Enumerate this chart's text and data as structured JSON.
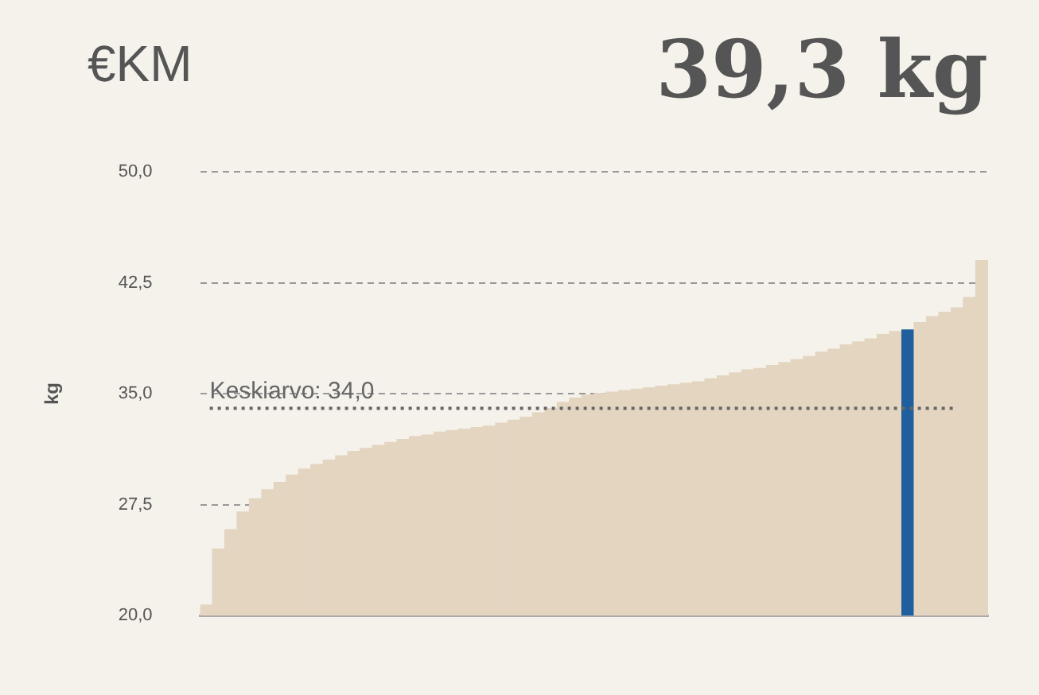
{
  "chart_data": {
    "type": "bar",
    "title": "€KM",
    "subtitle": "39,3 kg",
    "ylabel": "kg",
    "categories": [
      null,
      null,
      null,
      null,
      null,
      null,
      null,
      null,
      null,
      null,
      null,
      null,
      null,
      null,
      null,
      null,
      null,
      null,
      null,
      null,
      null,
      null,
      null,
      null,
      null,
      null,
      null,
      null,
      null,
      null,
      null,
      null,
      null,
      null,
      null,
      null,
      null,
      null,
      null,
      null,
      null,
      null,
      null,
      null,
      null,
      null,
      null,
      null,
      null,
      null,
      null,
      null,
      null,
      null,
      null,
      null,
      null,
      null,
      null,
      null,
      null,
      null,
      null,
      null
    ],
    "values": [
      20.7,
      24.5,
      25.8,
      27.0,
      27.9,
      28.5,
      29.0,
      29.5,
      29.9,
      30.2,
      30.5,
      30.8,
      31.1,
      31.3,
      31.5,
      31.7,
      31.9,
      32.1,
      32.2,
      32.4,
      32.5,
      32.6,
      32.7,
      32.8,
      33.0,
      33.2,
      33.4,
      33.7,
      34.0,
      34.4,
      34.7,
      34.9,
      35.0,
      35.1,
      35.2,
      35.3,
      35.4,
      35.5,
      35.6,
      35.7,
      35.8,
      36.0,
      36.2,
      36.4,
      36.6,
      36.7,
      36.9,
      37.1,
      37.3,
      37.5,
      37.8,
      38.0,
      38.3,
      38.5,
      38.7,
      39.0,
      39.2,
      39.3,
      39.8,
      40.2,
      40.5,
      40.8,
      41.5,
      44.0
    ],
    "colors": [
      "#e4d5c1",
      "#e4d5c1",
      "#e4d5c1",
      "#e4d5c1",
      "#e4d5c1",
      "#e4d5c1",
      "#e4d5c1",
      "#e4d5c1",
      "#e4d5c1",
      "#e4d5c1",
      "#e4d5c1",
      "#e4d5c1",
      "#e4d5c1",
      "#e4d5c1",
      "#e4d5c1",
      "#e4d5c1",
      "#e4d5c1",
      "#e4d5c1",
      "#e4d5c1",
      "#e4d5c1",
      "#e4d5c1",
      "#e4d5c1",
      "#e4d5c1",
      "#e4d5c1",
      "#e4d5c1",
      "#e4d5c1",
      "#e4d5c1",
      "#e4d5c1",
      "#e4d5c1",
      "#e4d5c1",
      "#e4d5c1",
      "#e4d5c1",
      "#e4d5c1",
      "#e4d5c1",
      "#e4d5c1",
      "#e4d5c1",
      "#e4d5c1",
      "#e4d5c1",
      "#e4d5c1",
      "#e4d5c1",
      "#e4d5c1",
      "#e4d5c1",
      "#e4d5c1",
      "#e4d5c1",
      "#e4d5c1",
      "#e4d5c1",
      "#e4d5c1",
      "#e4d5c1",
      "#e4d5c1",
      "#e4d5c1",
      "#e4d5c1",
      "#e4d5c1",
      "#e4d5c1",
      "#e4d5c1",
      "#e4d5c1",
      "#e4d5c1",
      "#e4d5c1",
      "#1f5f9e",
      "#e4d5c1",
      "#e4d5c1",
      "#e4d5c1",
      "#e4d5c1",
      "#e4d5c1",
      "#e4d5c1"
    ],
    "ylim": [
      20,
      50
    ],
    "yticks": [
      {
        "value": 20,
        "label": "20,0"
      },
      {
        "value": 27.5,
        "label": "27,5"
      },
      {
        "value": 35,
        "label": "35,0"
      },
      {
        "value": 42.5,
        "label": "42,5"
      },
      {
        "value": 50,
        "label": "50,0"
      }
    ],
    "grid": "y",
    "tick_labels": "y",
    "legend": false,
    "ref_lines": [
      {
        "axis": "y",
        "value": 34.0,
        "label": "Keskiarvo: 34,0",
        "color": "#666666",
        "line_style": "dotted"
      }
    ]
  }
}
